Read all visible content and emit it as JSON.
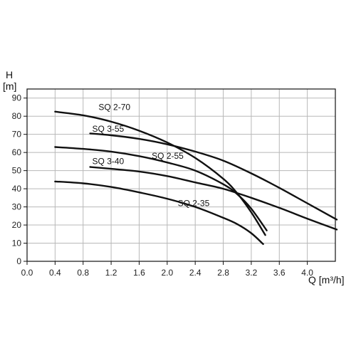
{
  "chart_data": {
    "type": "line",
    "xlabel": "Q [m³/h]",
    "ylabel_line1": "H",
    "ylabel_line2": "[m]",
    "xlim": [
      0.0,
      4.4
    ],
    "ylim": [
      0,
      95
    ],
    "grid": true,
    "x_ticks": [
      0.0,
      0.4,
      0.8,
      1.2,
      1.6,
      2.0,
      2.4,
      2.8,
      3.2,
      3.6,
      4.0
    ],
    "x_tick_labels": [
      "0.0",
      "0.4",
      "0.8",
      "1.2",
      "1.6",
      "2.0",
      "2.4",
      "2.8",
      "3.2",
      "3.6",
      "4.0"
    ],
    "y_ticks": [
      0,
      10,
      20,
      30,
      40,
      50,
      60,
      70,
      80,
      90
    ],
    "y_tick_labels": [
      "0",
      "10",
      "20",
      "30",
      "40",
      "50",
      "60",
      "70",
      "80",
      "90"
    ],
    "series": [
      {
        "name": "SQ 2-70",
        "label_at": [
          1.02,
          83.5
        ],
        "x": [
          0.4,
          0.8,
          1.2,
          1.6,
          2.0,
          2.4,
          2.8,
          3.0,
          3.2,
          3.4
        ],
        "y": [
          82.5,
          80.5,
          77,
          72,
          65.5,
          57,
          45.5,
          37.5,
          27,
          14.5
        ]
      },
      {
        "name": "SQ 3-55",
        "label_at": [
          0.93,
          71.5
        ],
        "x": [
          0.9,
          1.2,
          1.6,
          2.0,
          2.4,
          2.8,
          3.2,
          3.6,
          4.0,
          4.42
        ],
        "y": [
          70.5,
          69.5,
          67.5,
          64.5,
          60.5,
          55.5,
          48.5,
          40.5,
          32,
          23
        ]
      },
      {
        "name": "SQ 2-55",
        "label_at": [
          1.78,
          56.5
        ],
        "x": [
          0.4,
          0.8,
          1.2,
          1.6,
          2.0,
          2.4,
          2.8,
          3.0,
          3.2,
          3.42
        ],
        "y": [
          63,
          62,
          60.5,
          58,
          54.5,
          50,
          42.5,
          37,
          29,
          17
        ]
      },
      {
        "name": "SQ 3-40",
        "label_at": [
          0.93,
          53.5
        ],
        "x": [
          0.9,
          1.2,
          1.6,
          2.0,
          2.4,
          2.8,
          3.2,
          3.6,
          4.0,
          4.42
        ],
        "y": [
          52,
          51,
          49.5,
          47,
          43.5,
          40,
          35,
          29.5,
          23.5,
          17.5
        ]
      },
      {
        "name": "SQ 2-35",
        "label_at": [
          2.15,
          30.5
        ],
        "x": [
          0.4,
          0.8,
          1.2,
          1.6,
          2.0,
          2.4,
          2.8,
          3.0,
          3.2,
          3.37
        ],
        "y": [
          44,
          43,
          41,
          38,
          34.5,
          30,
          24,
          20.5,
          15.5,
          9.5
        ]
      }
    ]
  }
}
